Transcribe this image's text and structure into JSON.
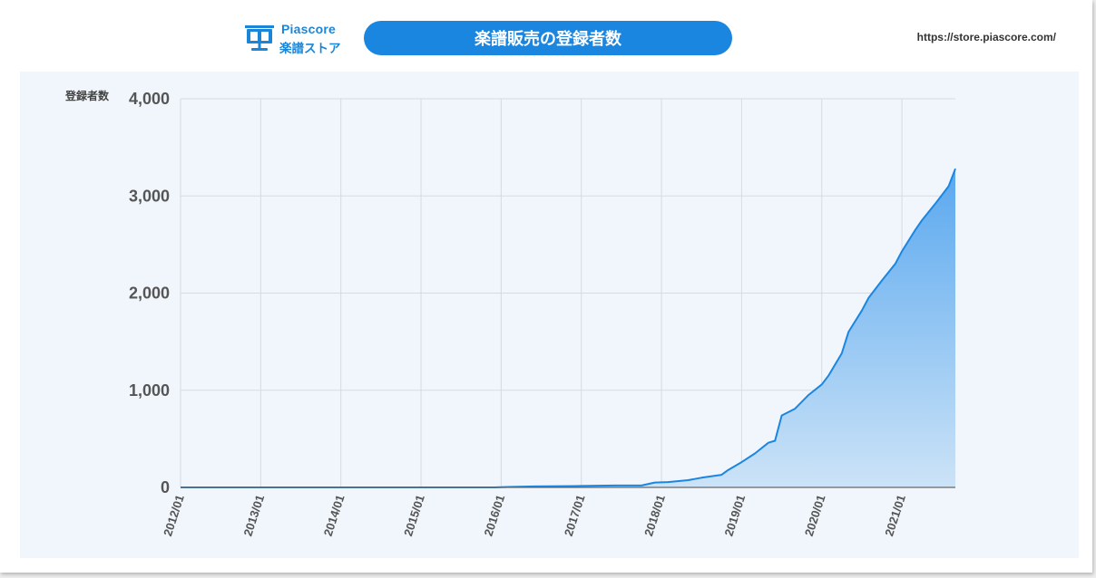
{
  "brand": {
    "name_en": "Piascore",
    "name_ja": "楽譜ストア",
    "color": "#1b86d8"
  },
  "header": {
    "title": "楽譜販売の登録者数",
    "url": "https://store.piascore.com/",
    "pill_color": "#1b86e0"
  },
  "chart_data": {
    "type": "area",
    "title": "楽譜販売の登録者数",
    "ylabel": "登録者数",
    "xlabel": "",
    "ylim": [
      0,
      4000
    ],
    "xlim": [
      "2012-01",
      "2021-09"
    ],
    "yticks": [
      0,
      1000,
      2000,
      3000,
      4000
    ],
    "ytick_labels": [
      "0",
      "1,000",
      "2,000",
      "3,000",
      "4,000"
    ],
    "xtick_labels": [
      "2012/01",
      "2013/01",
      "2014/01",
      "2015/01",
      "2016/01",
      "2017/01",
      "2018/01",
      "2019/01",
      "2020/01",
      "2021/01"
    ],
    "grid": true,
    "line_color": "#1b86e0",
    "fill_top_color": "#5aa8ef",
    "fill_bottom_color": "#cce3f7",
    "x": [
      "2012-01",
      "2015-12",
      "2016-02",
      "2016-06",
      "2017-01",
      "2017-06",
      "2017-10",
      "2017-12",
      "2018-02",
      "2018-05",
      "2018-07",
      "2018-10",
      "2018-11",
      "2019-01",
      "2019-03",
      "2019-05",
      "2019-06",
      "2019-07",
      "2019-09",
      "2019-11",
      "2020-01",
      "2020-02",
      "2020-04",
      "2020-05",
      "2020-07",
      "2020-08",
      "2020-10",
      "2020-12",
      "2021-01",
      "2021-03",
      "2021-04",
      "2021-06",
      "2021-08",
      "2021-09"
    ],
    "values": [
      0,
      0,
      5,
      10,
      15,
      20,
      20,
      50,
      55,
      75,
      100,
      130,
      180,
      260,
      350,
      460,
      480,
      740,
      810,
      950,
      1060,
      1150,
      1380,
      1600,
      1820,
      1950,
      2130,
      2300,
      2430,
      2650,
      2750,
      2920,
      3100,
      3280
    ]
  }
}
